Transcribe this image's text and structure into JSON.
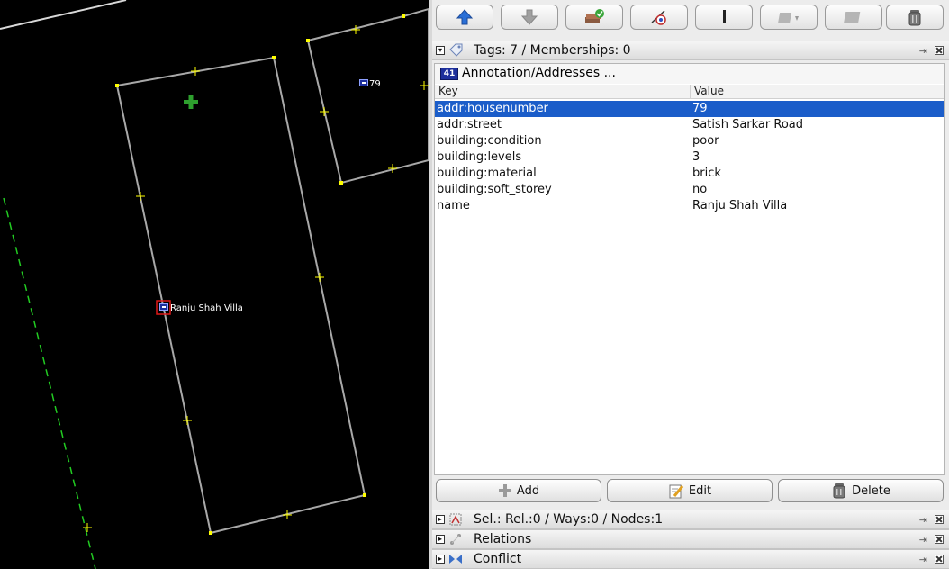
{
  "map": {
    "labels": {
      "villa": "Ranju Shah Villa",
      "house79": "79"
    }
  },
  "toolbar": {
    "buttons": [
      "move-up",
      "move-down",
      "validate",
      "hide-layer",
      "delete-layer",
      "merge",
      "duplicate",
      "trash"
    ]
  },
  "tags_dialog": {
    "title": "Tags: 7 / Memberships: 0",
    "preset": {
      "icon": "41",
      "label": "Annotation/Addresses ..."
    },
    "columns": {
      "key": "Key",
      "value": "Value"
    },
    "rows": [
      {
        "key": "addr:housenumber",
        "value": "79"
      },
      {
        "key": "addr:street",
        "value": "Satish Sarkar Road"
      },
      {
        "key": "building:condition",
        "value": "poor"
      },
      {
        "key": "building:levels",
        "value": "3"
      },
      {
        "key": "building:material",
        "value": "brick"
      },
      {
        "key": "building:soft_storey",
        "value": "no"
      },
      {
        "key": "name",
        "value": "Ranju Shah Villa"
      }
    ],
    "selected_row": 0,
    "buttons": {
      "add": "Add",
      "edit": "Edit",
      "delete": "Delete"
    }
  },
  "selection_dialog": {
    "title": "Sel.: Rel.:0 / Ways:0 / Nodes:1"
  },
  "relations_dialog": {
    "title": "Relations"
  },
  "conflict_dialog": {
    "title": "Conflict"
  },
  "colors": {
    "selection": "#1b5dc9",
    "map_bg": "#000000",
    "node": "#ffff00",
    "building": "#9a9a9a"
  }
}
